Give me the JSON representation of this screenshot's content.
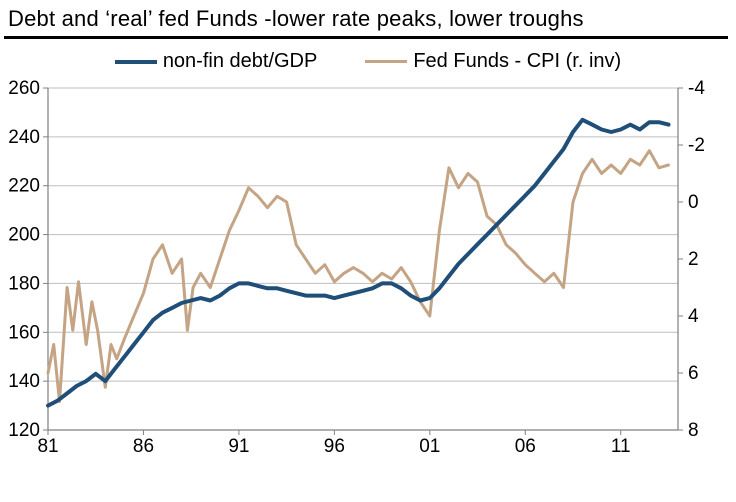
{
  "title": "Debt and ‘real’ fed Funds  -lower rate peaks, lower troughs",
  "legend": {
    "series1": {
      "label": "non-fin debt/GDP",
      "color": "#1f4e79",
      "width": 4
    },
    "series2": {
      "label": "Fed Funds - CPI (r. inv)",
      "color": "#c4a484",
      "width": 3
    }
  },
  "chart": {
    "type": "line",
    "background_color": "#ffffff",
    "grid_color": "#bfbfbf",
    "axis_color": "#808080",
    "label_fontsize": 19,
    "x": {
      "min": 1981,
      "max": 2014,
      "ticks": [
        1981,
        1986,
        1991,
        1996,
        2001,
        2006,
        2011
      ],
      "tick_labels": [
        "81",
        "86",
        "91",
        "96",
        "01",
        "06",
        "11"
      ]
    },
    "y_left": {
      "min": 120,
      "max": 260,
      "step": 20,
      "ticks": [
        120,
        140,
        160,
        180,
        200,
        220,
        240,
        260
      ]
    },
    "y_right": {
      "min": -4,
      "max": 8,
      "step": 2,
      "ticks": [
        -4,
        -2,
        0,
        2,
        4,
        6,
        8
      ],
      "inverted": true
    },
    "series1": {
      "name": "non-fin debt/GDP",
      "color": "#1f4e79",
      "width": 4,
      "axis": "left",
      "data": [
        [
          1981.0,
          130
        ],
        [
          1981.5,
          132
        ],
        [
          1982.0,
          135
        ],
        [
          1982.5,
          138
        ],
        [
          1983.0,
          140
        ],
        [
          1983.5,
          143
        ],
        [
          1984.0,
          140
        ],
        [
          1984.5,
          145
        ],
        [
          1985.0,
          150
        ],
        [
          1985.5,
          155
        ],
        [
          1986.0,
          160
        ],
        [
          1986.5,
          165
        ],
        [
          1987.0,
          168
        ],
        [
          1987.5,
          170
        ],
        [
          1988.0,
          172
        ],
        [
          1988.5,
          173
        ],
        [
          1989.0,
          174
        ],
        [
          1989.5,
          173
        ],
        [
          1990.0,
          175
        ],
        [
          1990.5,
          178
        ],
        [
          1991.0,
          180
        ],
        [
          1991.5,
          180
        ],
        [
          1992.0,
          179
        ],
        [
          1992.5,
          178
        ],
        [
          1993.0,
          178
        ],
        [
          1993.5,
          177
        ],
        [
          1994.0,
          176
        ],
        [
          1994.5,
          175
        ],
        [
          1995.0,
          175
        ],
        [
          1995.5,
          175
        ],
        [
          1996.0,
          174
        ],
        [
          1996.5,
          175
        ],
        [
          1997.0,
          176
        ],
        [
          1997.5,
          177
        ],
        [
          1998.0,
          178
        ],
        [
          1998.5,
          180
        ],
        [
          1999.0,
          180
        ],
        [
          1999.5,
          178
        ],
        [
          2000.0,
          175
        ],
        [
          2000.5,
          173
        ],
        [
          2001.0,
          174
        ],
        [
          2001.5,
          178
        ],
        [
          2002.0,
          183
        ],
        [
          2002.5,
          188
        ],
        [
          2003.0,
          192
        ],
        [
          2003.5,
          196
        ],
        [
          2004.0,
          200
        ],
        [
          2004.5,
          204
        ],
        [
          2005.0,
          208
        ],
        [
          2005.5,
          212
        ],
        [
          2006.0,
          216
        ],
        [
          2006.5,
          220
        ],
        [
          2007.0,
          225
        ],
        [
          2007.5,
          230
        ],
        [
          2008.0,
          235
        ],
        [
          2008.5,
          242
        ],
        [
          2009.0,
          247
        ],
        [
          2009.5,
          245
        ],
        [
          2010.0,
          243
        ],
        [
          2010.5,
          242
        ],
        [
          2011.0,
          243
        ],
        [
          2011.5,
          245
        ],
        [
          2012.0,
          243
        ],
        [
          2012.5,
          246
        ],
        [
          2013.0,
          246
        ],
        [
          2013.5,
          245
        ]
      ]
    },
    "series2": {
      "name": "Fed Funds - CPI (r. inv)",
      "color": "#c4a484",
      "width": 3,
      "axis": "right",
      "data": [
        [
          1981.0,
          6.0
        ],
        [
          1981.3,
          5.0
        ],
        [
          1981.6,
          7.0
        ],
        [
          1982.0,
          3.0
        ],
        [
          1982.3,
          4.5
        ],
        [
          1982.6,
          2.8
        ],
        [
          1983.0,
          5.0
        ],
        [
          1983.3,
          3.5
        ],
        [
          1983.6,
          4.5
        ],
        [
          1984.0,
          6.5
        ],
        [
          1984.3,
          5.0
        ],
        [
          1984.6,
          5.5
        ],
        [
          1985.0,
          4.8
        ],
        [
          1985.5,
          4.0
        ],
        [
          1986.0,
          3.2
        ],
        [
          1986.5,
          2.0
        ],
        [
          1987.0,
          1.5
        ],
        [
          1987.5,
          2.5
        ],
        [
          1988.0,
          2.0
        ],
        [
          1988.3,
          4.5
        ],
        [
          1988.6,
          3.0
        ],
        [
          1989.0,
          2.5
        ],
        [
          1989.5,
          3.0
        ],
        [
          1990.0,
          2.0
        ],
        [
          1990.5,
          1.0
        ],
        [
          1991.0,
          0.3
        ],
        [
          1991.5,
          -0.5
        ],
        [
          1992.0,
          -0.2
        ],
        [
          1992.5,
          0.2
        ],
        [
          1993.0,
          -0.2
        ],
        [
          1993.5,
          0.0
        ],
        [
          1994.0,
          1.5
        ],
        [
          1994.5,
          2.0
        ],
        [
          1995.0,
          2.5
        ],
        [
          1995.5,
          2.2
        ],
        [
          1996.0,
          2.8
        ],
        [
          1996.5,
          2.5
        ],
        [
          1997.0,
          2.3
        ],
        [
          1997.5,
          2.5
        ],
        [
          1998.0,
          2.8
        ],
        [
          1998.5,
          2.5
        ],
        [
          1999.0,
          2.7
        ],
        [
          1999.5,
          2.3
        ],
        [
          2000.0,
          2.8
        ],
        [
          2000.5,
          3.5
        ],
        [
          2001.0,
          4.0
        ],
        [
          2001.5,
          1.0
        ],
        [
          2002.0,
          -1.2
        ],
        [
          2002.5,
          -0.5
        ],
        [
          2003.0,
          -1.0
        ],
        [
          2003.5,
          -0.7
        ],
        [
          2004.0,
          0.5
        ],
        [
          2004.5,
          0.8
        ],
        [
          2005.0,
          1.5
        ],
        [
          2005.5,
          1.8
        ],
        [
          2006.0,
          2.2
        ],
        [
          2006.5,
          2.5
        ],
        [
          2007.0,
          2.8
        ],
        [
          2007.5,
          2.5
        ],
        [
          2008.0,
          3.0
        ],
        [
          2008.5,
          0.0
        ],
        [
          2009.0,
          -1.0
        ],
        [
          2009.5,
          -1.5
        ],
        [
          2010.0,
          -1.0
        ],
        [
          2010.5,
          -1.3
        ],
        [
          2011.0,
          -1.0
        ],
        [
          2011.5,
          -1.5
        ],
        [
          2012.0,
          -1.3
        ],
        [
          2012.5,
          -1.8
        ],
        [
          2013.0,
          -1.2
        ],
        [
          2013.5,
          -1.3
        ]
      ]
    }
  }
}
